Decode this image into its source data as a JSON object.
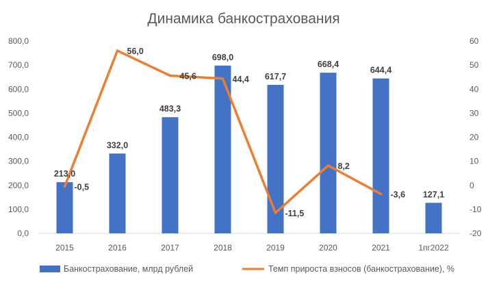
{
  "chart_data": {
    "type": "bar",
    "title": "Динамика банкострахования",
    "categories": [
      "2015",
      "2016",
      "2017",
      "2018",
      "2019",
      "2020",
      "2021",
      "1пг2022"
    ],
    "series": [
      {
        "name": "Банкострахование, млрд рублей",
        "type": "bar",
        "axis": "left",
        "color": "#4472C4",
        "values": [
          213.0,
          332.0,
          483.3,
          698.0,
          617.7,
          668.4,
          644.4,
          127.1
        ],
        "labels": [
          "213,0",
          "332,0",
          "483,3",
          "698,0",
          "617,7",
          "668,4",
          "644,4",
          "127,1"
        ]
      },
      {
        "name": "Темп прироста взносов (банкострахование), %",
        "type": "line",
        "axis": "right",
        "color": "#ED7D31",
        "values": [
          -0.5,
          56.0,
          45.6,
          44.4,
          -11.5,
          8.2,
          -3.6,
          null
        ],
        "labels": [
          "-0,5",
          "56,0",
          "45,6",
          "44,4",
          "-11,5",
          "8,2",
          "-3,6",
          ""
        ]
      }
    ],
    "y_left": {
      "ylim": [
        0,
        800
      ],
      "ticks": [
        0,
        100,
        200,
        300,
        400,
        500,
        600,
        700,
        800
      ],
      "tick_labels": [
        "0,0",
        "100,0",
        "200,0",
        "300,0",
        "400,0",
        "500,0",
        "600,0",
        "700,0",
        "800,0"
      ]
    },
    "y_right": {
      "ylim": [
        -20,
        60
      ],
      "ticks": [
        -20,
        -10,
        0,
        10,
        20,
        30,
        40,
        50,
        60
      ],
      "tick_labels": [
        "-20",
        "-10",
        "0",
        "10",
        "20",
        "30",
        "40",
        "50",
        "60"
      ]
    },
    "grid": false,
    "legend_position": "bottom"
  }
}
